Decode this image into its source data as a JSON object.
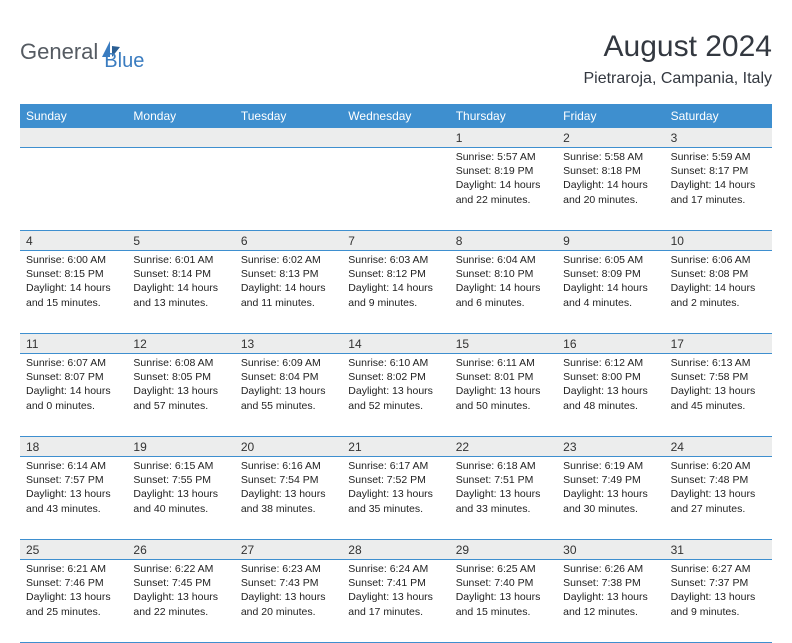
{
  "logo": {
    "part1": "General",
    "part2": "Blue"
  },
  "title": "August 2024",
  "location": "Pietraroja, Campania, Italy",
  "colors": {
    "header_bg": "#3e8fcf",
    "header_text": "#ffffff",
    "daynum_bg": "#eceded",
    "row_border": "#3e8fcf",
    "logo_gray": "#555b62",
    "logo_blue": "#3a7cc0"
  },
  "weekdays": [
    "Sunday",
    "Monday",
    "Tuesday",
    "Wednesday",
    "Thursday",
    "Friday",
    "Saturday"
  ],
  "weeks": [
    [
      null,
      null,
      null,
      null,
      {
        "d": "1",
        "sr": "5:57 AM",
        "ss": "8:19 PM",
        "dl": "14 hours and 22 minutes."
      },
      {
        "d": "2",
        "sr": "5:58 AM",
        "ss": "8:18 PM",
        "dl": "14 hours and 20 minutes."
      },
      {
        "d": "3",
        "sr": "5:59 AM",
        "ss": "8:17 PM",
        "dl": "14 hours and 17 minutes."
      }
    ],
    [
      {
        "d": "4",
        "sr": "6:00 AM",
        "ss": "8:15 PM",
        "dl": "14 hours and 15 minutes."
      },
      {
        "d": "5",
        "sr": "6:01 AM",
        "ss": "8:14 PM",
        "dl": "14 hours and 13 minutes."
      },
      {
        "d": "6",
        "sr": "6:02 AM",
        "ss": "8:13 PM",
        "dl": "14 hours and 11 minutes."
      },
      {
        "d": "7",
        "sr": "6:03 AM",
        "ss": "8:12 PM",
        "dl": "14 hours and 9 minutes."
      },
      {
        "d": "8",
        "sr": "6:04 AM",
        "ss": "8:10 PM",
        "dl": "14 hours and 6 minutes."
      },
      {
        "d": "9",
        "sr": "6:05 AM",
        "ss": "8:09 PM",
        "dl": "14 hours and 4 minutes."
      },
      {
        "d": "10",
        "sr": "6:06 AM",
        "ss": "8:08 PM",
        "dl": "14 hours and 2 minutes."
      }
    ],
    [
      {
        "d": "11",
        "sr": "6:07 AM",
        "ss": "8:07 PM",
        "dl": "14 hours and 0 minutes."
      },
      {
        "d": "12",
        "sr": "6:08 AM",
        "ss": "8:05 PM",
        "dl": "13 hours and 57 minutes."
      },
      {
        "d": "13",
        "sr": "6:09 AM",
        "ss": "8:04 PM",
        "dl": "13 hours and 55 minutes."
      },
      {
        "d": "14",
        "sr": "6:10 AM",
        "ss": "8:02 PM",
        "dl": "13 hours and 52 minutes."
      },
      {
        "d": "15",
        "sr": "6:11 AM",
        "ss": "8:01 PM",
        "dl": "13 hours and 50 minutes."
      },
      {
        "d": "16",
        "sr": "6:12 AM",
        "ss": "8:00 PM",
        "dl": "13 hours and 48 minutes."
      },
      {
        "d": "17",
        "sr": "6:13 AM",
        "ss": "7:58 PM",
        "dl": "13 hours and 45 minutes."
      }
    ],
    [
      {
        "d": "18",
        "sr": "6:14 AM",
        "ss": "7:57 PM",
        "dl": "13 hours and 43 minutes."
      },
      {
        "d": "19",
        "sr": "6:15 AM",
        "ss": "7:55 PM",
        "dl": "13 hours and 40 minutes."
      },
      {
        "d": "20",
        "sr": "6:16 AM",
        "ss": "7:54 PM",
        "dl": "13 hours and 38 minutes."
      },
      {
        "d": "21",
        "sr": "6:17 AM",
        "ss": "7:52 PM",
        "dl": "13 hours and 35 minutes."
      },
      {
        "d": "22",
        "sr": "6:18 AM",
        "ss": "7:51 PM",
        "dl": "13 hours and 33 minutes."
      },
      {
        "d": "23",
        "sr": "6:19 AM",
        "ss": "7:49 PM",
        "dl": "13 hours and 30 minutes."
      },
      {
        "d": "24",
        "sr": "6:20 AM",
        "ss": "7:48 PM",
        "dl": "13 hours and 27 minutes."
      }
    ],
    [
      {
        "d": "25",
        "sr": "6:21 AM",
        "ss": "7:46 PM",
        "dl": "13 hours and 25 minutes."
      },
      {
        "d": "26",
        "sr": "6:22 AM",
        "ss": "7:45 PM",
        "dl": "13 hours and 22 minutes."
      },
      {
        "d": "27",
        "sr": "6:23 AM",
        "ss": "7:43 PM",
        "dl": "13 hours and 20 minutes."
      },
      {
        "d": "28",
        "sr": "6:24 AM",
        "ss": "7:41 PM",
        "dl": "13 hours and 17 minutes."
      },
      {
        "d": "29",
        "sr": "6:25 AM",
        "ss": "7:40 PM",
        "dl": "13 hours and 15 minutes."
      },
      {
        "d": "30",
        "sr": "6:26 AM",
        "ss": "7:38 PM",
        "dl": "13 hours and 12 minutes."
      },
      {
        "d": "31",
        "sr": "6:27 AM",
        "ss": "7:37 PM",
        "dl": "13 hours and 9 minutes."
      }
    ]
  ],
  "labels": {
    "sunrise": "Sunrise: ",
    "sunset": "Sunset: ",
    "daylight": "Daylight: "
  }
}
